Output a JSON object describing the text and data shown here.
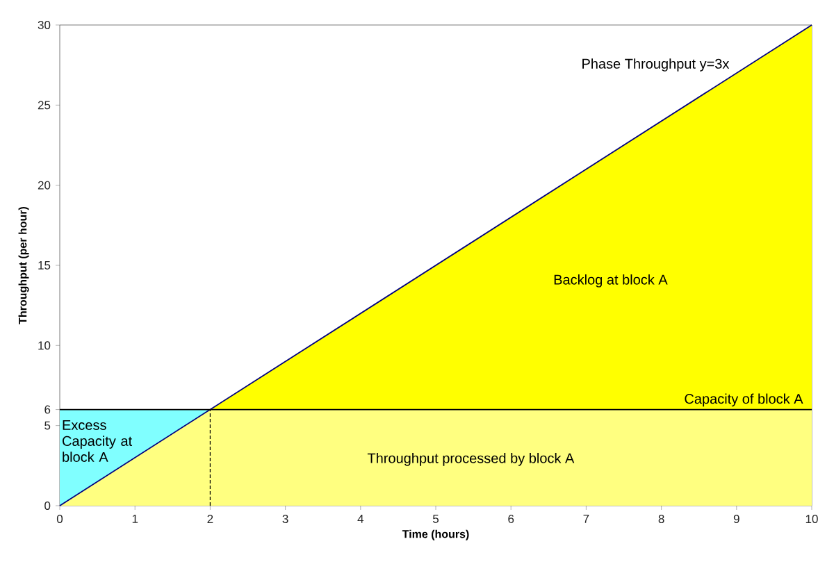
{
  "chart_data": {
    "type": "area",
    "xlabel": "Time (hours)",
    "ylabel": "Throughput (per hour)",
    "xlim": [
      0,
      10
    ],
    "xticks": [
      0,
      1,
      2,
      3,
      4,
      5,
      6,
      7,
      8,
      9,
      10
    ],
    "ylim": [
      0,
      30
    ],
    "yticks": [
      0,
      5,
      6,
      10,
      15,
      20,
      25,
      30
    ],
    "series": [
      {
        "name": "Excess Capacity at block A",
        "color": "#80ffff",
        "x": [
          0,
          2
        ],
        "values": [
          6,
          6
        ]
      },
      {
        "name": "Backlog at block A",
        "color": "#ffff00",
        "x": [
          2,
          10
        ],
        "values": [
          6,
          30
        ]
      },
      {
        "name": "Throughput processed by block A",
        "color": "#ffff80",
        "x": [
          0,
          2,
          10
        ],
        "values": [
          0,
          6,
          6
        ]
      },
      {
        "type": "line",
        "name": "Phase Throughput y=3x",
        "color": "#000080",
        "x": [
          0,
          10
        ],
        "values": [
          0,
          30
        ]
      },
      {
        "type": "line",
        "color": "#000000",
        "x": [
          2,
          2
        ],
        "values": [
          0,
          6
        ],
        "line_style": "dashed"
      }
    ],
    "ref_lines": [
      {
        "axis": "y",
        "value": 6,
        "label": "Capacity of block A",
        "color": "#000000"
      }
    ]
  }
}
